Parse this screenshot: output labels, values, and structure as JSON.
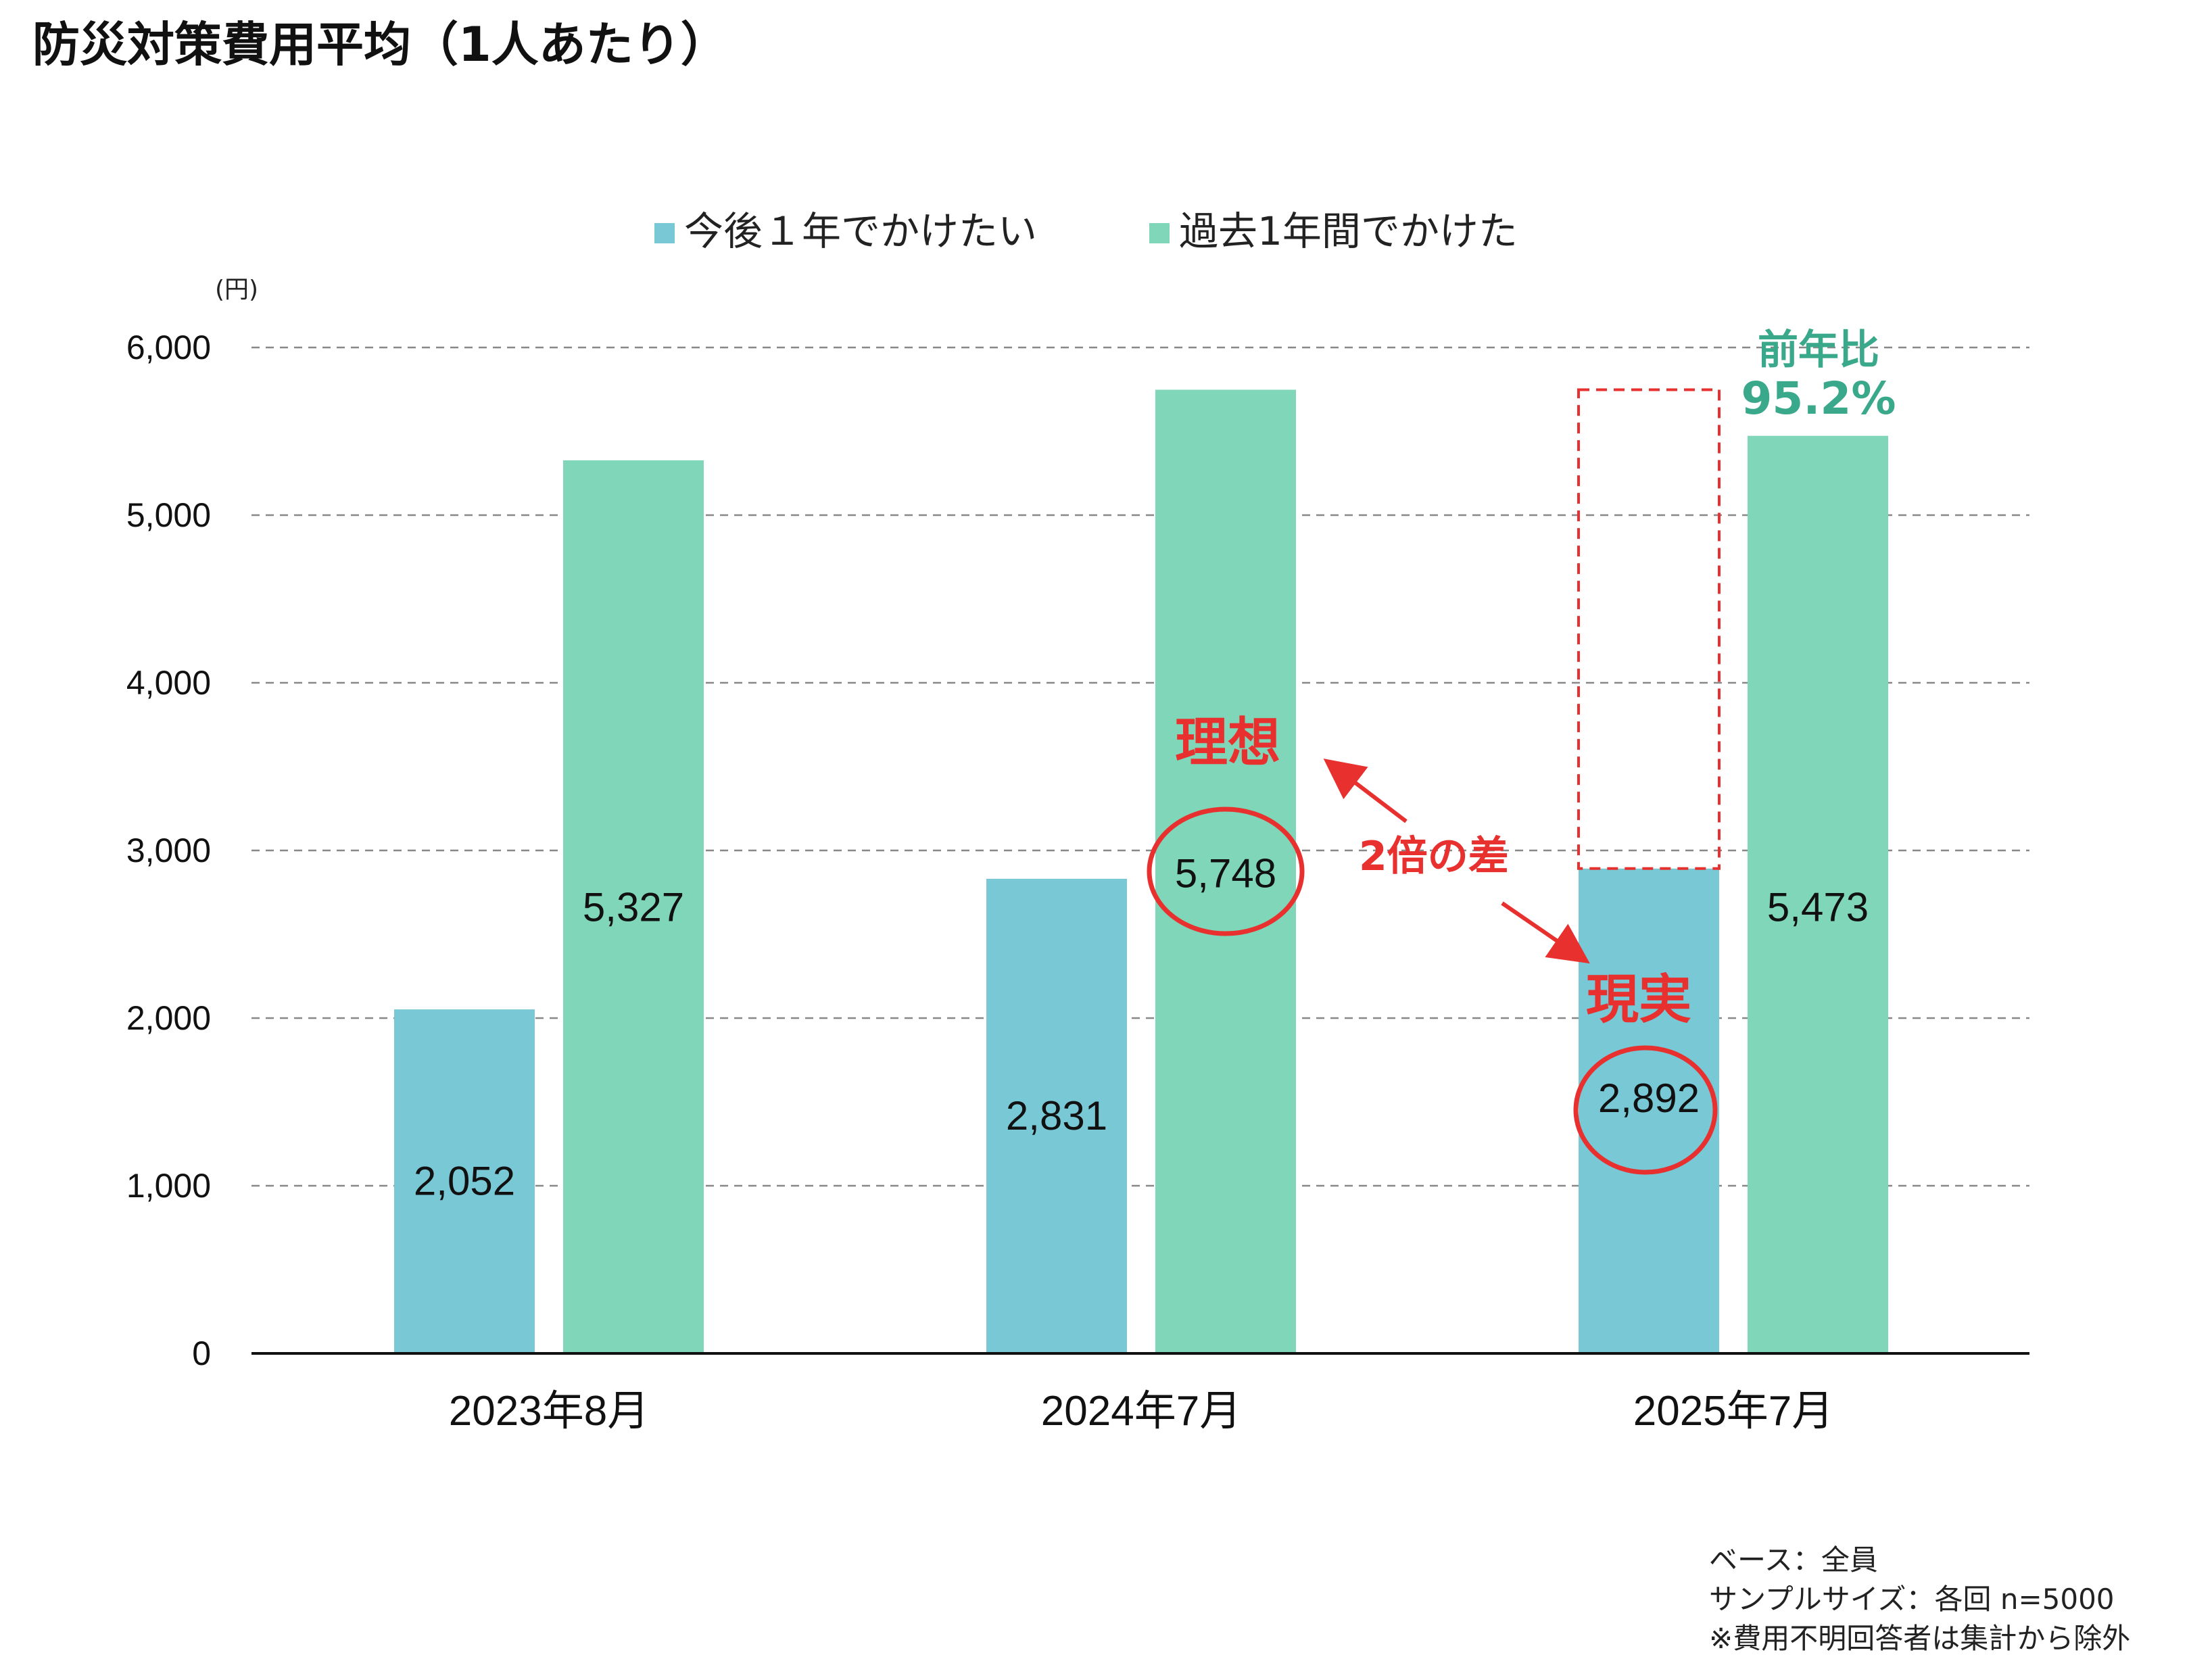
{
  "title": "防災対策費用平均（1人あたり）",
  "legend": {
    "items": [
      {
        "label": "今後１年でかけたい",
        "color": "#78c8d6"
      },
      {
        "label": "過去1年間でかけた",
        "color": "#7fd6b8"
      }
    ]
  },
  "unit_label": "(円)",
  "chart_data": {
    "type": "bar",
    "title": "防災対策費用平均（1人あたり）",
    "ylabel": "(円)",
    "xlabel": "",
    "ylim": [
      0,
      6000
    ],
    "yticks": [
      0,
      1000,
      2000,
      3000,
      4000,
      5000,
      6000
    ],
    "ytick_labels": [
      "0",
      "1,000",
      "2,000",
      "3,000",
      "4,000",
      "5,000",
      "6,000"
    ],
    "grid": true,
    "legend_position": "top-center",
    "categories": [
      "2023年8月",
      "2024年7月",
      "2025年7月"
    ],
    "series": [
      {
        "name": "今後１年でかけたい",
        "values": [
          2052,
          2831,
          2892
        ],
        "labels": [
          "2,052",
          "2,831",
          "2,892"
        ],
        "color": "#78c8d6"
      },
      {
        "name": "過去1年間でかけた",
        "values": [
          5327,
          5748,
          5473
        ],
        "labels": [
          "5,327",
          "5,748",
          "5,473"
        ],
        "color": "#7fd6b8"
      }
    ]
  },
  "annotations": {
    "ideal": "理想",
    "reality": "現実",
    "gap": "2倍の差",
    "yoy_label": "前年比",
    "yoy_value": "95.2%",
    "accent_red": "#e8312f",
    "accent_green": "#3aa88a"
  },
  "footnotes": [
    "ベース：全員",
    "サンプルサイズ：各回 n=5000",
    "※費用不明回答者は集計から除外"
  ]
}
